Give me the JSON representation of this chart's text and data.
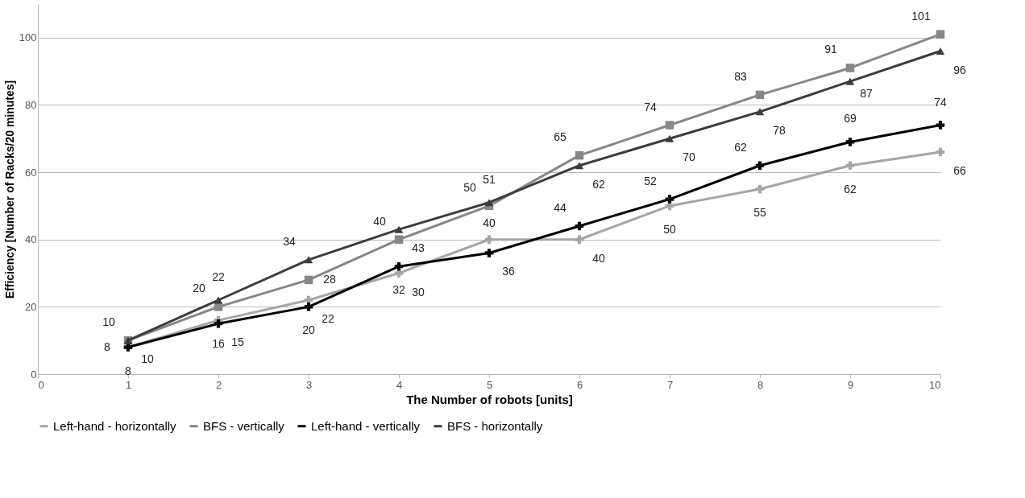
{
  "chart_data": {
    "type": "line",
    "xlabel": "The Number of robots [units]",
    "ylabel": "Efficiency [Number of Racks/20 minutes]",
    "x": [
      1,
      2,
      3,
      4,
      5,
      6,
      7,
      8,
      9,
      10
    ],
    "series": [
      {
        "name": "Left-hand - horizontally",
        "color": "#a6a6a6",
        "marker": "cross",
        "values": [
          8,
          16,
          22,
          30,
          40,
          40,
          50,
          55,
          62,
          66
        ]
      },
      {
        "name": "BFS - vertically",
        "color": "#878787",
        "marker": "square",
        "values": [
          10,
          20,
          28,
          40,
          50,
          65,
          74,
          83,
          91,
          101
        ]
      },
      {
        "name": "Left-hand - vertically",
        "color": "#000000",
        "marker": "cross",
        "values": [
          8,
          15,
          20,
          32,
          36,
          44,
          52,
          62,
          69,
          74
        ]
      },
      {
        "name": "BFS - horizontally",
        "color": "#3c3c3c",
        "marker": "triangle",
        "values": [
          10,
          22,
          34,
          43,
          51,
          62,
          70,
          78,
          87,
          96
        ]
      }
    ],
    "xlim": [
      0,
      10
    ],
    "xticks": [
      0,
      1,
      2,
      3,
      4,
      5,
      6,
      7,
      8,
      9,
      10
    ],
    "ylim": [
      0,
      110
    ],
    "yticks": [
      0,
      20,
      40,
      60,
      80,
      100
    ],
    "grid": "y",
    "legend": "bottom",
    "data_labels": true
  }
}
